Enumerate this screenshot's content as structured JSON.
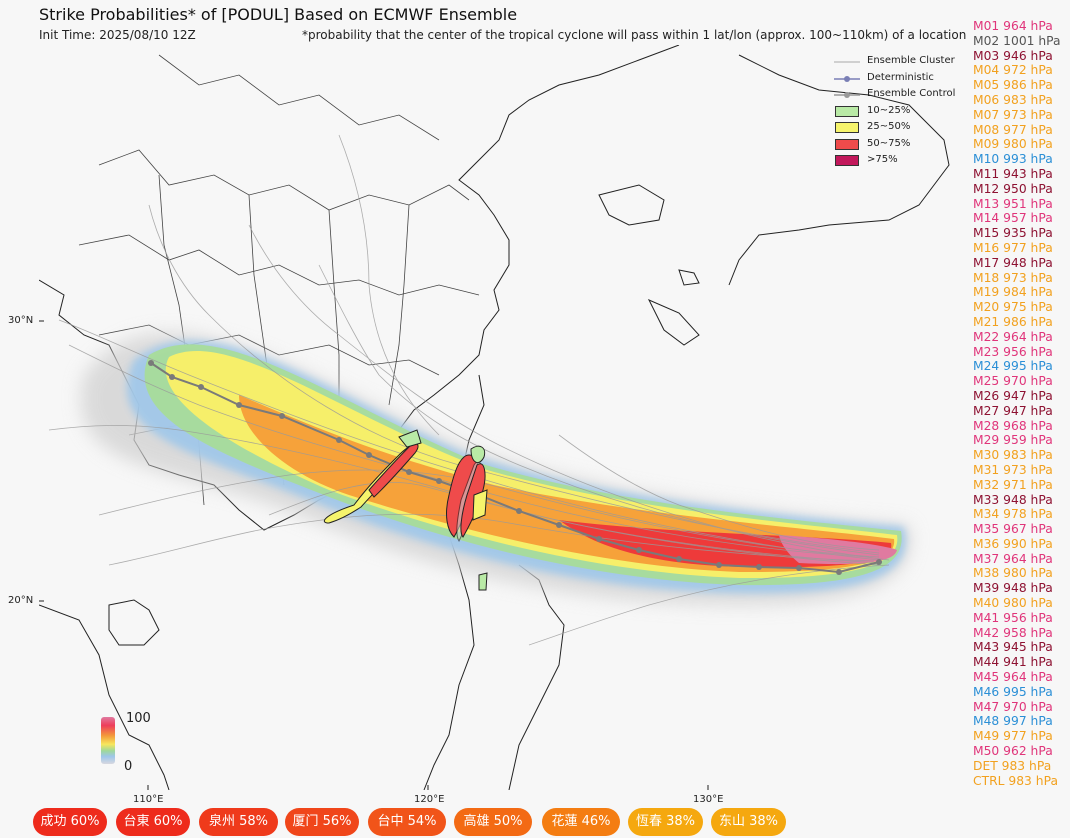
{
  "header": {
    "title": "Strike Probabilities* of [PODUL] Based on ECMWF Ensemble",
    "init_time": "Init Time: 2025/08/10 12Z",
    "note": "*probability that the center of the tropical cyclone will pass within 1 lat/lon (approx. 100~110km) of a location"
  },
  "axes": {
    "lat_labels": [
      "30°N",
      "20°N"
    ],
    "lon_labels": [
      "110°E",
      "120°E",
      "130°E"
    ]
  },
  "legend": {
    "ensemble_cluster": "Ensemble Cluster",
    "deterministic": "Deterministic",
    "ensemble_control": "Ensemble Control",
    "bins": [
      {
        "label": "10~25%",
        "color": "#b9eaa6"
      },
      {
        "label": "25~50%",
        "color": "#f6f46c"
      },
      {
        "label": "50~75%",
        "color": "#ef4b4b"
      },
      {
        "label": ">75%",
        "color": "#c2185b"
      }
    ]
  },
  "colorbar": {
    "max": "100",
    "min": "0"
  },
  "members": [
    {
      "label": "M01 964 hPa",
      "color": "#e0357a"
    },
    {
      "label": "M02 1001 hPa",
      "color": "#555555"
    },
    {
      "label": "M03 946 hPa",
      "color": "#8e1232"
    },
    {
      "label": "M04 972 hPa",
      "color": "#f2a11f"
    },
    {
      "label": "M05 986 hPa",
      "color": "#f2a11f"
    },
    {
      "label": "M06 983 hPa",
      "color": "#f2a11f"
    },
    {
      "label": "M07 973 hPa",
      "color": "#f2a11f"
    },
    {
      "label": "M08 977 hPa",
      "color": "#f2a11f"
    },
    {
      "label": "M09 980 hPa",
      "color": "#f2a11f"
    },
    {
      "label": "M10 993 hPa",
      "color": "#2b8fd6"
    },
    {
      "label": "M11 943 hPa",
      "color": "#8e1232"
    },
    {
      "label": "M12 950 hPa",
      "color": "#8e1232"
    },
    {
      "label": "M13 951 hPa",
      "color": "#e0357a"
    },
    {
      "label": "M14 957 hPa",
      "color": "#e0357a"
    },
    {
      "label": "M15 935 hPa",
      "color": "#8e1232"
    },
    {
      "label": "M16 977 hPa",
      "color": "#f2a11f"
    },
    {
      "label": "M17 948 hPa",
      "color": "#8e1232"
    },
    {
      "label": "M18 973 hPa",
      "color": "#f2a11f"
    },
    {
      "label": "M19 984 hPa",
      "color": "#f2a11f"
    },
    {
      "label": "M20 975 hPa",
      "color": "#f2a11f"
    },
    {
      "label": "M21 986 hPa",
      "color": "#f2a11f"
    },
    {
      "label": "M22 964 hPa",
      "color": "#e0357a"
    },
    {
      "label": "M23 956 hPa",
      "color": "#e0357a"
    },
    {
      "label": "M24 995 hPa",
      "color": "#2b8fd6"
    },
    {
      "label": "M25 970 hPa",
      "color": "#e0357a"
    },
    {
      "label": "M26 947 hPa",
      "color": "#8e1232"
    },
    {
      "label": "M27 947 hPa",
      "color": "#8e1232"
    },
    {
      "label": "M28 968 hPa",
      "color": "#e0357a"
    },
    {
      "label": "M29 959 hPa",
      "color": "#e0357a"
    },
    {
      "label": "M30 983 hPa",
      "color": "#f2a11f"
    },
    {
      "label": "M31 973 hPa",
      "color": "#f2a11f"
    },
    {
      "label": "M32 971 hPa",
      "color": "#f2a11f"
    },
    {
      "label": "M33 948 hPa",
      "color": "#8e1232"
    },
    {
      "label": "M34 978 hPa",
      "color": "#f2a11f"
    },
    {
      "label": "M35 967 hPa",
      "color": "#e0357a"
    },
    {
      "label": "M36 990 hPa",
      "color": "#f2a11f"
    },
    {
      "label": "M37 964 hPa",
      "color": "#e0357a"
    },
    {
      "label": "M38 980 hPa",
      "color": "#f2a11f"
    },
    {
      "label": "M39 948 hPa",
      "color": "#8e1232"
    },
    {
      "label": "M40 980 hPa",
      "color": "#f2a11f"
    },
    {
      "label": "M41 956 hPa",
      "color": "#e0357a"
    },
    {
      "label": "M42 958 hPa",
      "color": "#e0357a"
    },
    {
      "label": "M43 945 hPa",
      "color": "#8e1232"
    },
    {
      "label": "M44 941 hPa",
      "color": "#8e1232"
    },
    {
      "label": "M45 964 hPa",
      "color": "#e0357a"
    },
    {
      "label": "M46 995 hPa",
      "color": "#2b8fd6"
    },
    {
      "label": "M47 970 hPa",
      "color": "#e0357a"
    },
    {
      "label": "M48 997 hPa",
      "color": "#2b8fd6"
    },
    {
      "label": "M49 977 hPa",
      "color": "#f2a11f"
    },
    {
      "label": "M50 962 hPa",
      "color": "#e0357a"
    },
    {
      "label": "DET 983 hPa",
      "color": "#f2a11f"
    },
    {
      "label": "CTRL 983 hPa",
      "color": "#f2a11f"
    }
  ],
  "locations": [
    {
      "name": "成功",
      "pct": "60%",
      "color": "#ee2b1c"
    },
    {
      "name": "台東",
      "pct": "60%",
      "color": "#ee2b1c"
    },
    {
      "name": "泉州",
      "pct": "58%",
      "color": "#ef3a1b"
    },
    {
      "name": "厦门",
      "pct": "56%",
      "color": "#f0461a"
    },
    {
      "name": "台中",
      "pct": "54%",
      "color": "#f15419"
    },
    {
      "name": "高雄",
      "pct": "50%",
      "color": "#f36a14"
    },
    {
      "name": "花蓮",
      "pct": "46%",
      "color": "#f47d12"
    },
    {
      "name": "恆春",
      "pct": "38%",
      "color": "#f5a80f"
    },
    {
      "name": "东山",
      "pct": "38%",
      "color": "#f5a80f"
    }
  ]
}
